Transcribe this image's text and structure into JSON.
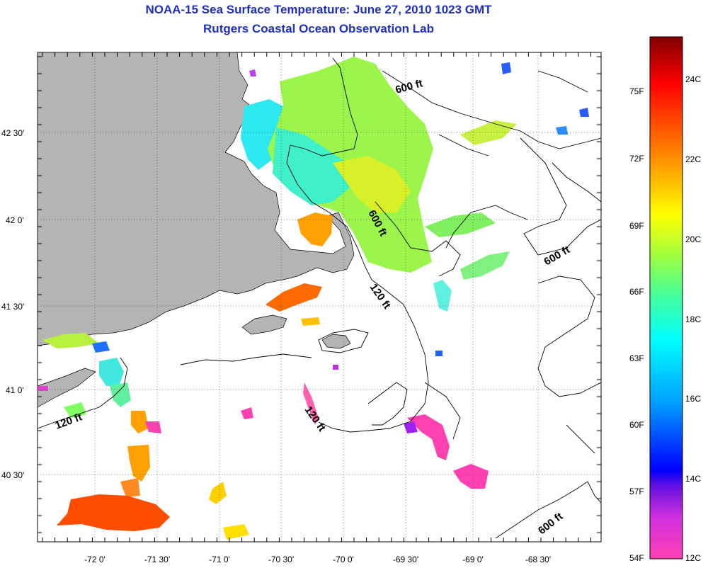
{
  "title": "NOAA-15 Sea Surface Temperature:  June 27, 2010 1023 GMT",
  "subtitle": "Rutgers Coastal Ocean Observation Lab",
  "map": {
    "longitude_ticks": [
      "-72 0'",
      "-71 30'",
      "-71 0'",
      "-70 30'",
      "-70 0'",
      "-69 30'",
      "-69 0'",
      "-68 30'"
    ],
    "latitude_ticks": [
      "42 30'",
      "42 0'",
      "41 30'",
      "41 0'",
      "40 30'"
    ],
    "contour_labels": [
      "600 ft",
      "600 ft",
      "600 ft",
      "600 ft",
      "120 ft",
      "120 ft",
      "120 ft"
    ],
    "land_color": "#b4b4b4",
    "grid": "dotted"
  },
  "colorbar": {
    "fahrenheit_labels": [
      "75F",
      "72F",
      "69F",
      "66F",
      "63F",
      "60F",
      "57F",
      "54F"
    ],
    "celsius_labels": [
      "24C",
      "22C",
      "20C",
      "18C",
      "16C",
      "14C",
      "12C"
    ],
    "colors": [
      "#ff40b4",
      "#a020f0",
      "#0000ff",
      "#00b4ff",
      "#00ffff",
      "#80ff40",
      "#ffff00",
      "#ff8000",
      "#ff0000",
      "#800000"
    ]
  }
}
